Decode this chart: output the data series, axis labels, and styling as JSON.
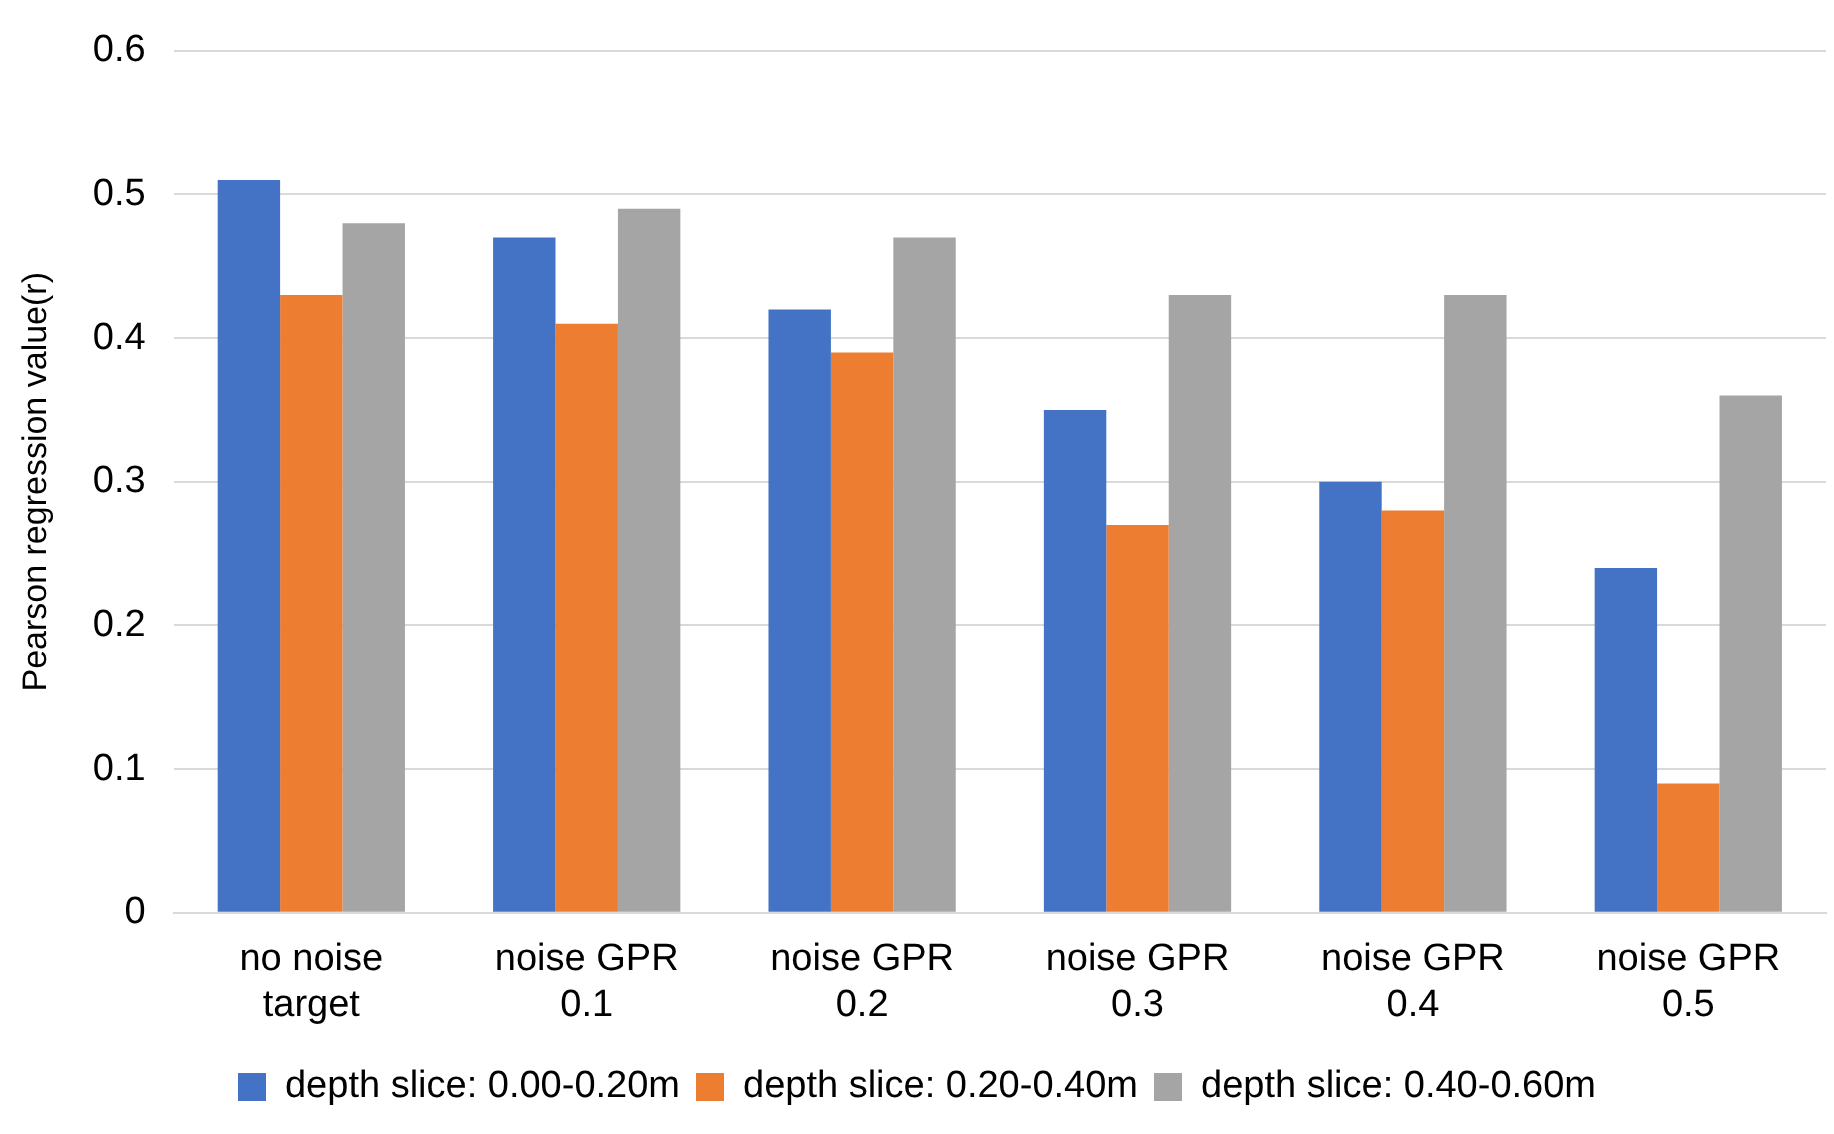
{
  "chart_data": {
    "type": "bar",
    "ylabel": "Pearson regression value(r)",
    "categories": [
      "no noise\ntarget",
      "noise GPR\n0.1",
      "noise GPR\n0.2",
      "noise GPR\n0.3",
      "noise GPR\n0.4",
      "noise GPR\n0.5"
    ],
    "series": [
      {
        "name": "depth slice: 0.00-0.20m",
        "color": "#4472c4",
        "values": [
          0.51,
          0.47,
          0.42,
          0.35,
          0.3,
          0.24
        ]
      },
      {
        "name": "depth slice: 0.20-0.40m",
        "color": "#ed7d31",
        "values": [
          0.43,
          0.41,
          0.39,
          0.27,
          0.28,
          0.09
        ]
      },
      {
        "name": "depth slice: 0.40-0.60m",
        "color": "#a5a5a5",
        "values": [
          0.48,
          0.49,
          0.47,
          0.43,
          0.43,
          0.36
        ]
      }
    ],
    "ylim": [
      0,
      0.6
    ],
    "yticks": [
      0,
      0.1,
      0.2,
      0.3,
      0.4,
      0.5,
      0.6
    ],
    "grid": "y",
    "legend": "bottom"
  }
}
